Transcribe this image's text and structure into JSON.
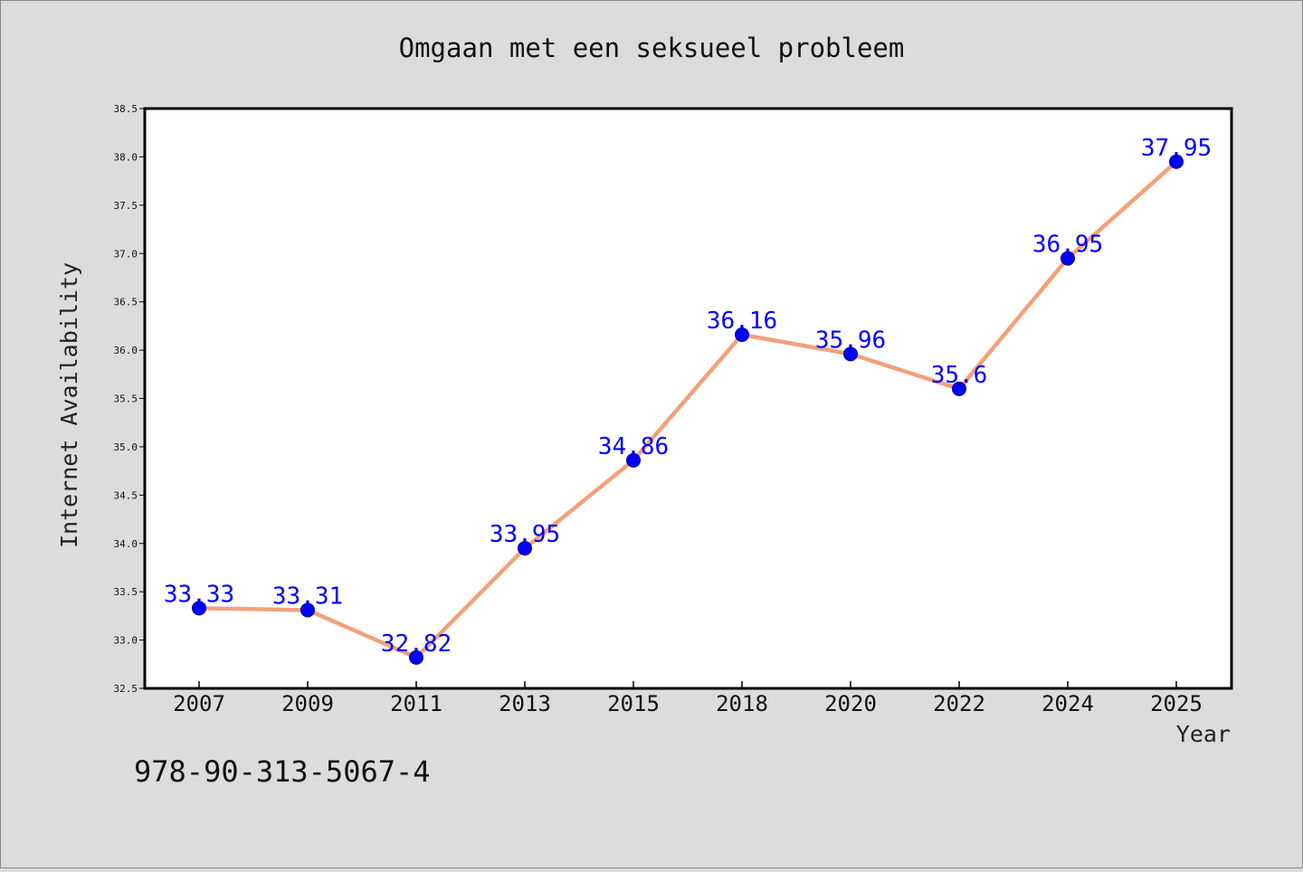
{
  "chart_data": {
    "type": "line",
    "title": "Omgaan met een seksueel probleem",
    "xlabel": "Year",
    "ylabel": "Internet Availability",
    "categories": [
      "2007",
      "2009",
      "2011",
      "2013",
      "2015",
      "2018",
      "2020",
      "2022",
      "2024",
      "2025"
    ],
    "series": [
      {
        "values": [
          33.33,
          33.31,
          32.82,
          33.95,
          34.86,
          36.16,
          35.96,
          35.6,
          36.95,
          37.95
        ]
      }
    ],
    "ylim": [
      32.5,
      38.5
    ],
    "yticks": [
      "32.5",
      "33.0",
      "33.5",
      "34.0",
      "34.5",
      "35.0",
      "35.5",
      "36.0",
      "36.5",
      "37.0",
      "37.5",
      "38.0",
      "38.5"
    ],
    "grid": false,
    "legend": "none",
    "line_color": "#f4a07a",
    "marker_color": "#0000ff",
    "label_color": "#0000ff",
    "background_color": "#dcdcdc",
    "plot_background_color": "#ffffff"
  },
  "footer": {
    "isbn": "978-90-313-5067-4"
  }
}
